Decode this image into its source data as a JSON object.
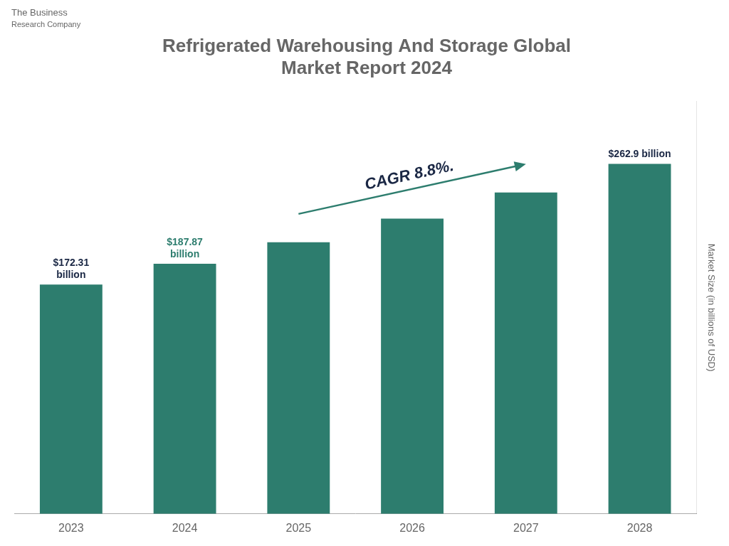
{
  "chart_data": {
    "type": "bar",
    "title": "Refrigerated Warehousing And Storage Global\nMarket Report 2024",
    "ylabel": "Market Size (in billions of USD)",
    "categories": [
      "2023",
      "2024",
      "2025",
      "2026",
      "2027",
      "2028"
    ],
    "values": [
      172.31,
      187.87,
      204.0,
      221.8,
      241.5,
      262.9
    ],
    "color": "#2d7d6e",
    "ylim": [
      0,
      310
    ],
    "grid": false,
    "tick_labels": "x",
    "annotations": [
      {
        "text": "$172.31\nbillion",
        "category": "2023",
        "color": "#1a2744"
      },
      {
        "text": "$187.87\nbillion",
        "category": "2024",
        "color": "#2d7d6e"
      },
      {
        "text": "$262.9 billion",
        "category": "2028",
        "color": "#1a2744"
      },
      {
        "text": "CAGR 8.8%.",
        "color": "#1a2744",
        "arrow_from": "2025",
        "arrow_to": "2027",
        "arrow_color": "#2d7d6e"
      },
      {
        "text": "The Business"
      },
      {
        "text": "Research Company"
      }
    ]
  }
}
